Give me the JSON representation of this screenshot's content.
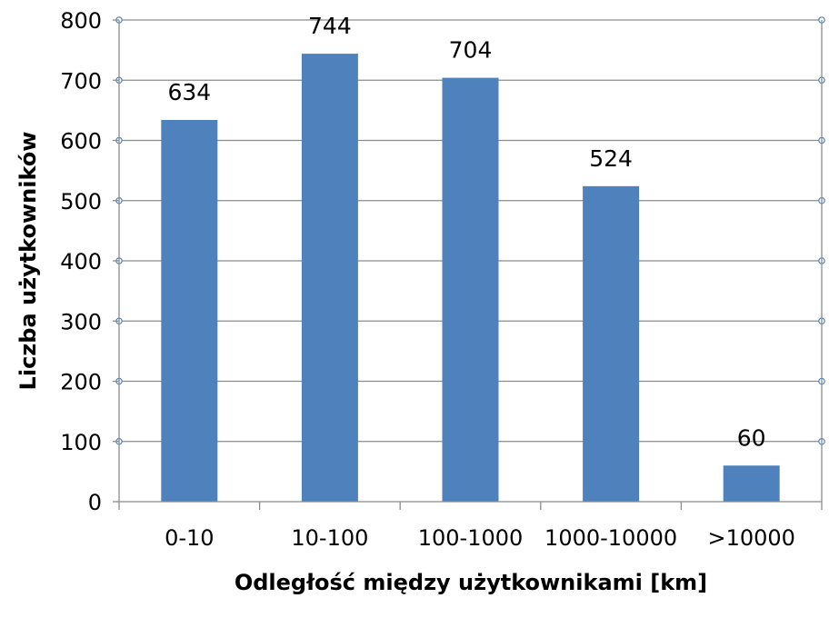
{
  "chart_data": {
    "type": "bar",
    "categories": [
      "0-10",
      "10-100",
      "100-1000",
      "1000-10000",
      ">10000"
    ],
    "values": [
      634,
      744,
      704,
      524,
      60
    ],
    "data_labels": [
      "634",
      "744",
      "704",
      "524",
      "60"
    ],
    "xlabel": "Odległość między użytkownikami [km]",
    "ylabel": "Liczba użytkowników",
    "ylim": [
      0,
      800
    ],
    "yticks": [
      "0",
      "100",
      "200",
      "300",
      "400",
      "500",
      "600",
      "700",
      "800"
    ],
    "grid": true,
    "bar_color": "#4f81bd",
    "grid_color": "#8c8c8c",
    "marker_color": "#4f81bd"
  }
}
